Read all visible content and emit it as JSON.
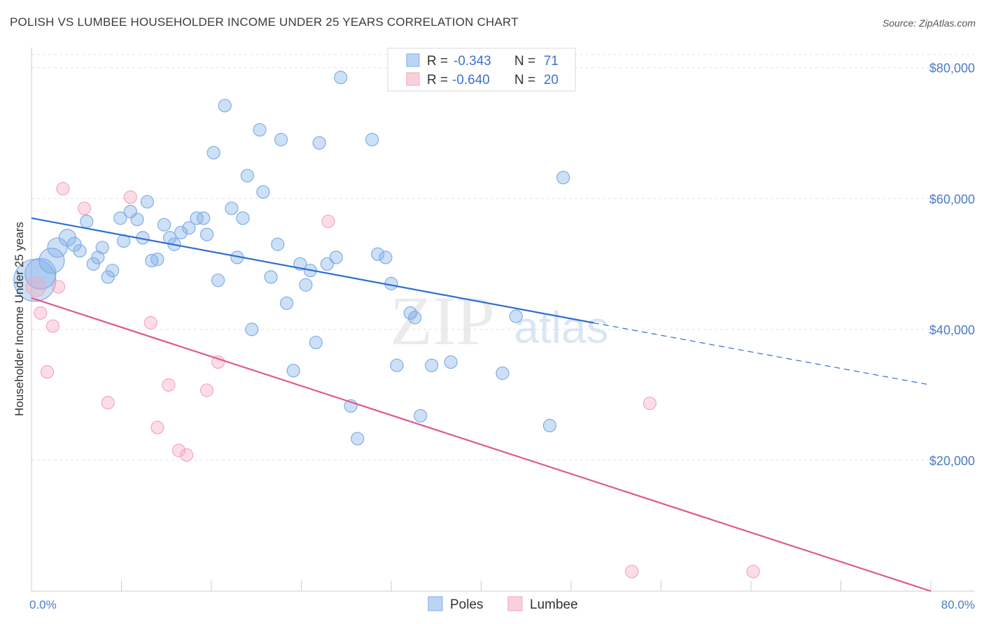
{
  "header": {
    "title": "POLISH VS LUMBEE HOUSEHOLDER INCOME UNDER 25 YEARS CORRELATION CHART",
    "source": "Source: ZipAtlas.com"
  },
  "watermark": {
    "zip": "ZIP",
    "atlas": "atlas"
  },
  "chart_data": {
    "type": "scatter",
    "title": "POLISH VS LUMBEE HOUSEHOLDER INCOME UNDER 25 YEARS CORRELATION CHART",
    "ylabel": "Householder Income Under 25 years",
    "xlabel": "",
    "xlim": [
      0,
      80
    ],
    "ylim": [
      0,
      82000
    ],
    "x_tick_labels": {
      "left": "0.0%",
      "right": "80.0%"
    },
    "y_ticks": [
      {
        "value": 20000,
        "label": "$20,000"
      },
      {
        "value": 40000,
        "label": "$40,000"
      },
      {
        "value": 60000,
        "label": "$60,000"
      },
      {
        "value": 80000,
        "label": "$80,000"
      }
    ],
    "grid": true,
    "legend_position": "top-center",
    "stats": [
      {
        "r_label": "R =",
        "r": "-0.343",
        "n_label": "N =",
        "n": "71"
      },
      {
        "r_label": "R =",
        "r": "-0.640",
        "n_label": "N =",
        "n": "20"
      }
    ],
    "series": [
      {
        "name": "Poles",
        "color": "#7eaee8",
        "line_color": "#2f6fcf",
        "trend": {
          "x0": 0,
          "y0": 57000,
          "x1": 50,
          "y1": 41000,
          "dash_to_x": 80,
          "dash_to_y": 31500
        },
        "points": [
          [
            0.3,
            47500,
            30
          ],
          [
            0.8,
            48500,
            22
          ],
          [
            1.8,
            50500,
            18
          ],
          [
            2.3,
            52500,
            14
          ],
          [
            3.2,
            54000,
            12
          ],
          [
            3.8,
            53000,
            10
          ],
          [
            4.3,
            52000,
            9
          ],
          [
            4.9,
            56500,
            9
          ],
          [
            5.5,
            50000,
            9
          ],
          [
            5.9,
            51000,
            9
          ],
          [
            6.3,
            52500,
            9
          ],
          [
            6.8,
            48000,
            9
          ],
          [
            7.2,
            49000,
            9
          ],
          [
            7.9,
            57000,
            9
          ],
          [
            8.2,
            53500,
            9
          ],
          [
            8.8,
            58000,
            9
          ],
          [
            9.4,
            56800,
            9
          ],
          [
            9.9,
            54000,
            9
          ],
          [
            10.3,
            59500,
            9
          ],
          [
            10.7,
            50500,
            9
          ],
          [
            11.2,
            50700,
            9
          ],
          [
            11.8,
            56000,
            9
          ],
          [
            12.3,
            54000,
            9
          ],
          [
            12.7,
            53000,
            9
          ],
          [
            13.3,
            54800,
            9
          ],
          [
            14.0,
            55500,
            9
          ],
          [
            14.7,
            57000,
            9
          ],
          [
            15.3,
            57000,
            9
          ],
          [
            15.6,
            54500,
            9
          ],
          [
            16.2,
            67000,
            9
          ],
          [
            16.6,
            47500,
            9
          ],
          [
            17.2,
            74200,
            9
          ],
          [
            17.8,
            58500,
            9
          ],
          [
            18.3,
            51000,
            9
          ],
          [
            18.8,
            57000,
            9
          ],
          [
            19.2,
            63500,
            9
          ],
          [
            19.6,
            40000,
            9
          ],
          [
            20.3,
            70500,
            9
          ],
          [
            20.6,
            61000,
            9
          ],
          [
            21.3,
            48000,
            9
          ],
          [
            21.9,
            53000,
            9
          ],
          [
            22.2,
            69000,
            9
          ],
          [
            22.7,
            44000,
            9
          ],
          [
            23.3,
            33700,
            9
          ],
          [
            23.9,
            50000,
            9
          ],
          [
            24.4,
            46800,
            9
          ],
          [
            24.8,
            49000,
            9
          ],
          [
            25.3,
            38000,
            9
          ],
          [
            25.6,
            68500,
            9
          ],
          [
            26.3,
            50000,
            9
          ],
          [
            27.1,
            51000,
            9
          ],
          [
            27.5,
            78500,
            9
          ],
          [
            28.4,
            28300,
            9
          ],
          [
            29.0,
            23300,
            9
          ],
          [
            30.3,
            69000,
            9
          ],
          [
            30.8,
            51500,
            9
          ],
          [
            31.5,
            51000,
            9
          ],
          [
            32.0,
            47000,
            9
          ],
          [
            32.5,
            34500,
            9
          ],
          [
            33.7,
            42500,
            9
          ],
          [
            34.1,
            41800,
            9
          ],
          [
            34.6,
            26800,
            9
          ],
          [
            35.6,
            34500,
            9
          ],
          [
            37.3,
            35000,
            9
          ],
          [
            41.9,
            33300,
            9
          ],
          [
            43.1,
            42000,
            9
          ],
          [
            46.1,
            25300,
            9
          ],
          [
            47.3,
            63200,
            9
          ]
        ]
      },
      {
        "name": "Lumbee",
        "color": "#f4a6bf",
        "line_color": "#e0588c",
        "trend": {
          "x0": 0,
          "y0": 44800,
          "x1": 80,
          "y1": 0
        },
        "points": [
          [
            0.4,
            46500,
            14
          ],
          [
            0.8,
            42500,
            9
          ],
          [
            1.4,
            33500,
            9
          ],
          [
            1.9,
            40500,
            9
          ],
          [
            2.4,
            46500,
            9
          ],
          [
            2.8,
            61500,
            9
          ],
          [
            4.7,
            58500,
            9
          ],
          [
            6.8,
            28800,
            9
          ],
          [
            8.8,
            60200,
            9
          ],
          [
            10.6,
            41000,
            9
          ],
          [
            11.2,
            25000,
            9
          ],
          [
            12.2,
            31500,
            9
          ],
          [
            13.1,
            21500,
            9
          ],
          [
            13.8,
            20800,
            9
          ],
          [
            15.6,
            30700,
            9
          ],
          [
            16.6,
            35000,
            9
          ],
          [
            26.4,
            56500,
            9
          ],
          [
            55.0,
            28700,
            9
          ],
          [
            53.4,
            3000,
            9
          ],
          [
            64.2,
            3000,
            9
          ]
        ]
      }
    ]
  }
}
